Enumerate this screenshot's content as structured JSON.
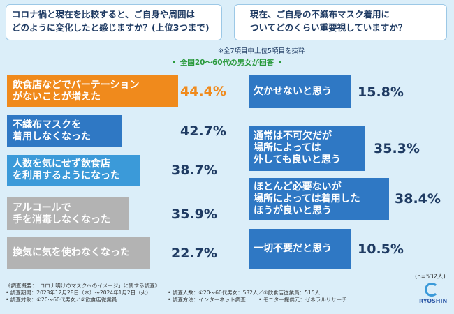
{
  "left": {
    "title": [
      "コロナ禍と現在を比較すると、ご自身や周囲は",
      "どのように変化したと感じますか？(上位3つまで)"
    ],
    "items": [
      {
        "label": [
          "飲食店などでパーテーション",
          "がないことが増えた"
        ],
        "value": "44.4%"
      },
      {
        "label": [
          "不織布マスクを",
          "着用しなくなった"
        ],
        "value": "42.7%"
      },
      {
        "label": [
          "人数を気にせず飲食店",
          "を利用するようになった"
        ],
        "value": "38.7%"
      },
      {
        "label": [
          "アルコールで",
          "手を消毒しなくなった"
        ],
        "value": "35.9%"
      },
      {
        "label": [
          "換気に気を使わなくなった"
        ],
        "value": "22.7%"
      }
    ]
  },
  "right": {
    "title": [
      "現在、ご自身の不織布マスク着用に",
      "ついてどのくらい重要視していますか？"
    ],
    "items": [
      {
        "label": [
          "欠かせないと思う"
        ],
        "value": "15.8%"
      },
      {
        "label": [
          "通常は不可欠だが",
          "場所によっては",
          "外しても良いと思う"
        ],
        "value": "35.3%"
      },
      {
        "label": [
          "ほとんど必要ないが",
          "場所によっては着用した",
          "ほうが良いと思う"
        ],
        "value": "38.4%"
      },
      {
        "label": [
          "一切不要だと思う"
        ],
        "value": "10.5%"
      }
    ]
  },
  "note": "※全7項目中上位5項目を抜粋",
  "banner": "・ 全国20〜60代の男女が回答 ・",
  "sample": "(n=532人)",
  "footer": [
    "《調査概要：「コロナ明けのマスクへのイメージ」に関する調査》",
    "• 調査期間：2023年12月28日（木）～2024年1月2日（火）",
    "• 調査人数：①20〜60代男女：532人／②飲食店従業員：515人",
    "• 調査対象：①20〜60代男女／②飲食店従業員",
    "• 調査方法：インターネット調査",
    "• モニター提供元：ゼネラルリサーチ"
  ],
  "logo": "RYOSHIN"
}
